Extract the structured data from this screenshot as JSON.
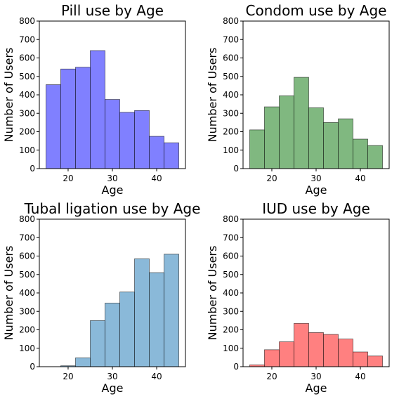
{
  "chart_data": [
    {
      "type": "bar",
      "title": "Pill use by Age",
      "xlabel": "Age",
      "ylabel": "Number of Users",
      "bin_edges": [
        15,
        18.33,
        21.67,
        25,
        28.33,
        31.67,
        35,
        38.33,
        41.67,
        45
      ],
      "values": [
        455,
        540,
        550,
        640,
        375,
        305,
        315,
        175,
        140
      ],
      "xlim": [
        13.5,
        46.5
      ],
      "ylim": [
        0,
        800
      ],
      "xticks": [
        20,
        30,
        40
      ],
      "yticks": [
        0,
        100,
        200,
        300,
        400,
        500,
        600,
        700,
        800
      ],
      "color": "#8080ff",
      "grid": false
    },
    {
      "type": "bar",
      "title": "Condom use by Age",
      "xlabel": "Age",
      "ylabel": "Number of Users",
      "bin_edges": [
        15,
        18.33,
        21.67,
        25,
        28.33,
        31.67,
        35,
        38.33,
        41.67,
        45
      ],
      "values": [
        210,
        335,
        395,
        495,
        330,
        250,
        270,
        160,
        125
      ],
      "xlim": [
        13.5,
        46.5
      ],
      "ylim": [
        0,
        800
      ],
      "xticks": [
        20,
        30,
        40
      ],
      "yticks": [
        0,
        100,
        200,
        300,
        400,
        500,
        600,
        700,
        800
      ],
      "color": "#80b880",
      "grid": false
    },
    {
      "type": "bar",
      "title": "Tubal ligation use by Age",
      "xlabel": "Age",
      "ylabel": "Number of Users",
      "bin_edges": [
        15,
        18.33,
        21.67,
        25,
        28.33,
        31.67,
        35,
        38.33,
        41.67,
        45
      ],
      "values": [
        0,
        5,
        48,
        250,
        345,
        405,
        585,
        510,
        610
      ],
      "xlim": [
        13.5,
        46.5
      ],
      "ylim": [
        0,
        800
      ],
      "xticks": [
        20,
        30,
        40
      ],
      "yticks": [
        0,
        100,
        200,
        300,
        400,
        500,
        600,
        700,
        800
      ],
      "color": "#8ab9d9",
      "grid": false
    },
    {
      "type": "bar",
      "title": "IUD use by Age",
      "xlabel": "Age",
      "ylabel": "Number of Users",
      "bin_edges": [
        15,
        18.33,
        21.67,
        25,
        28.33,
        31.67,
        35,
        38.33,
        41.67,
        45
      ],
      "values": [
        10,
        92,
        135,
        235,
        185,
        175,
        150,
        80,
        58
      ],
      "xlim": [
        13.5,
        46.5
      ],
      "ylim": [
        0,
        800
      ],
      "xticks": [
        20,
        30,
        40
      ],
      "yticks": [
        0,
        100,
        200,
        300,
        400,
        500,
        600,
        700,
        800
      ],
      "color": "#ff8080",
      "grid": false
    }
  ]
}
